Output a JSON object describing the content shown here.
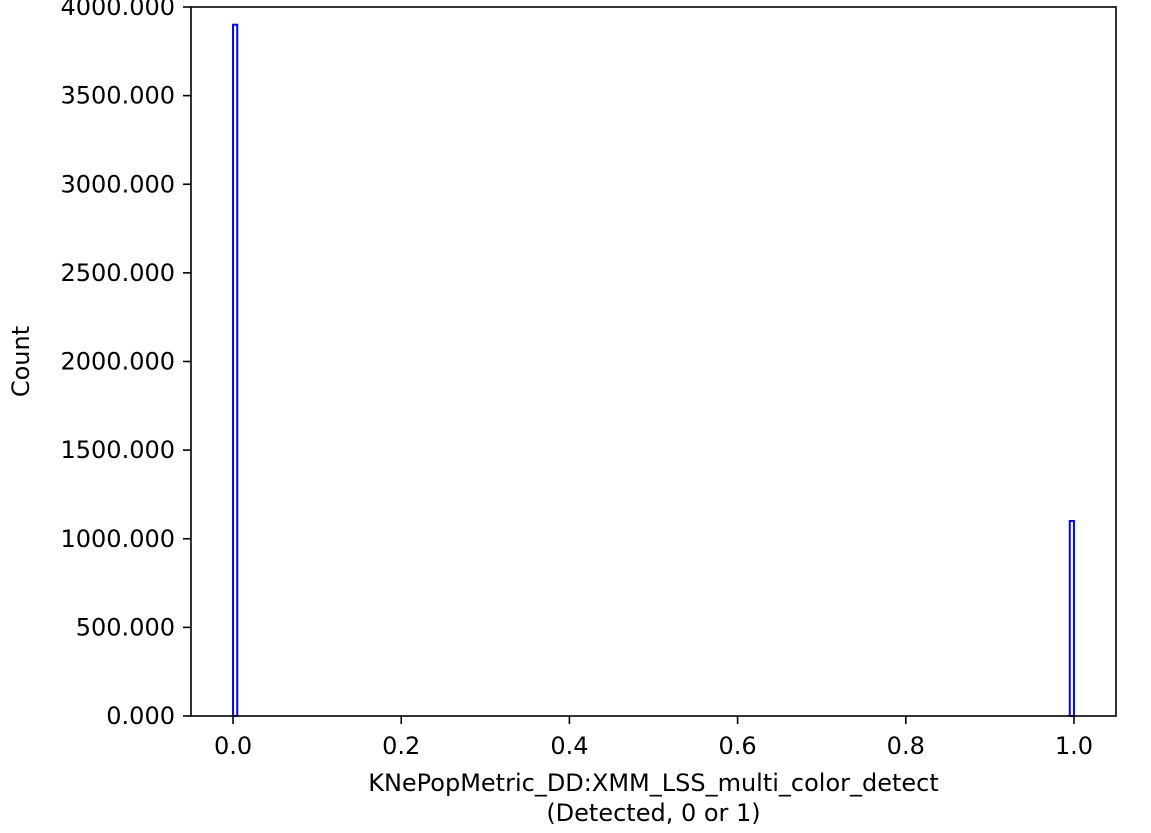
{
  "chart_data": {
    "type": "bar",
    "title": "",
    "xlabel_line1": "KNePopMetric_DD:XMM_LSS_multi_color_detect",
    "xlabel_line2": "(Detected, 0 or 1)",
    "ylabel": "Count",
    "xlim": [
      -0.05,
      1.05
    ],
    "ylim": [
      0,
      4000
    ],
    "x_ticks": [
      0.0,
      0.2,
      0.4,
      0.6,
      0.8,
      1.0
    ],
    "x_tick_labels": [
      "0.0",
      "0.2",
      "0.4",
      "0.6",
      "0.8",
      "1.0"
    ],
    "y_ticks": [
      0,
      500,
      1000,
      1500,
      2000,
      2500,
      3000,
      3500,
      4000
    ],
    "y_tick_labels": [
      "0.000",
      "500.000",
      "1000.000",
      "1500.000",
      "2000.000",
      "2500.000",
      "3000.000",
      "3500.000",
      "4000.000"
    ],
    "bin_width": 0.005,
    "bars": [
      {
        "x_start": 0.0,
        "x_end": 0.005,
        "value": 3900
      },
      {
        "x_start": 0.995,
        "x_end": 1.0,
        "value": 1100
      }
    ],
    "edge_color": "#0000ff",
    "fill_color": "none",
    "grid": false,
    "legend": "none"
  }
}
